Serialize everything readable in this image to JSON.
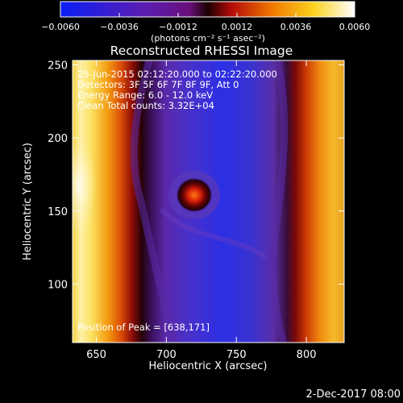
{
  "chart_data": {
    "type": "heatmap",
    "title": "Reconstructed RHESSI Image",
    "xlabel": "Heliocentric X (arcsec)",
    "ylabel": "Heliocentric Y (arcsec)",
    "xlim": [
      633,
      827
    ],
    "ylim": [
      60,
      253
    ],
    "xticks": [
      650,
      700,
      750,
      800
    ],
    "yticks": [
      100,
      150,
      200,
      250
    ],
    "colorbar": {
      "ticks": [
        -0.006,
        -0.0036,
        -0.0012,
        0.0012,
        0.0036,
        0.006
      ],
      "tick_labels": [
        "−0.0060",
        "−0.0036",
        "−0.0012",
        "0.0012",
        "0.0036",
        "0.0060"
      ],
      "range": [
        -0.006,
        0.006
      ],
      "unit_label": "(photons cm⁻² s⁻¹ asec⁻²)"
    },
    "annotations": {
      "time_range": "25-Jun-2015 02:12:20.000 to 02:22:20.000",
      "detectors": "Detectors: 3F 5F 6F 7F 8F 9F, Att 0",
      "energy": "Energy Range: 6.0 - 12.0 keV",
      "clean": "Clean     Total counts: 3.32E+04",
      "peak": "Position of Peak = [638,171]"
    },
    "footer_date": "2-Dec-2017 08:00"
  }
}
